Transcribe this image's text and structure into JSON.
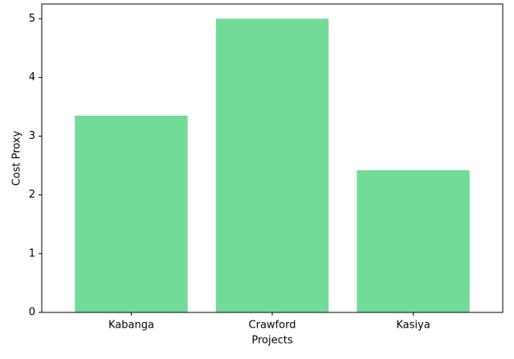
{
  "chart_data": {
    "type": "bar",
    "x_label": "Projects",
    "y_label": "Cost Proxy",
    "categories": [
      "Kabanga",
      "Crawford",
      "Kasiya"
    ],
    "values": [
      3.35,
      5.0,
      2.42
    ],
    "color": "#72db98",
    "ylim": [
      0,
      5.25
    ],
    "yticks": [
      0,
      1,
      2,
      3,
      4,
      5
    ],
    "grid": false
  }
}
